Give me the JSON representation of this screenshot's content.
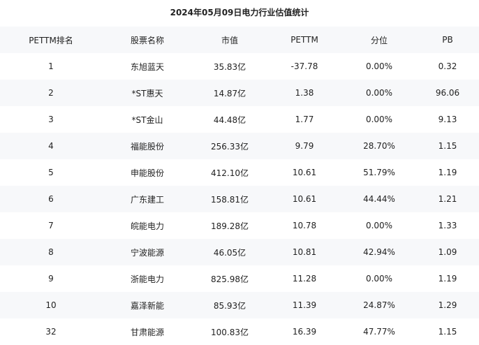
{
  "title": "2024年05月09日电力行业估值统计",
  "columns": [
    "PETTM排名",
    "股票名称",
    "市值",
    "PETTM",
    "分位",
    "PB"
  ],
  "rows": [
    [
      "1",
      "东旭蓝天",
      "35.83亿",
      "-37.78",
      "0.00%",
      "0.32"
    ],
    [
      "2",
      "*ST惠天",
      "14.87亿",
      "1.38",
      "0.00%",
      "96.06"
    ],
    [
      "3",
      "*ST金山",
      "44.48亿",
      "1.77",
      "0.00%",
      "9.13"
    ],
    [
      "4",
      "福能股份",
      "256.33亿",
      "9.79",
      "28.70%",
      "1.15"
    ],
    [
      "5",
      "申能股份",
      "412.10亿",
      "10.61",
      "51.79%",
      "1.19"
    ],
    [
      "6",
      "广东建工",
      "158.81亿",
      "10.61",
      "44.44%",
      "1.21"
    ],
    [
      "7",
      "皖能电力",
      "189.28亿",
      "10.78",
      "0.00%",
      "1.33"
    ],
    [
      "8",
      "宁波能源",
      "46.05亿",
      "10.81",
      "42.94%",
      "1.09"
    ],
    [
      "9",
      "浙能电力",
      "825.98亿",
      "11.28",
      "0.00%",
      "1.19"
    ],
    [
      "10",
      "嘉泽新能",
      "85.93亿",
      "11.39",
      "24.87%",
      "1.29"
    ],
    [
      "32",
      "甘肃能源",
      "100.83亿",
      "16.39",
      "47.77%",
      "1.15"
    ]
  ]
}
